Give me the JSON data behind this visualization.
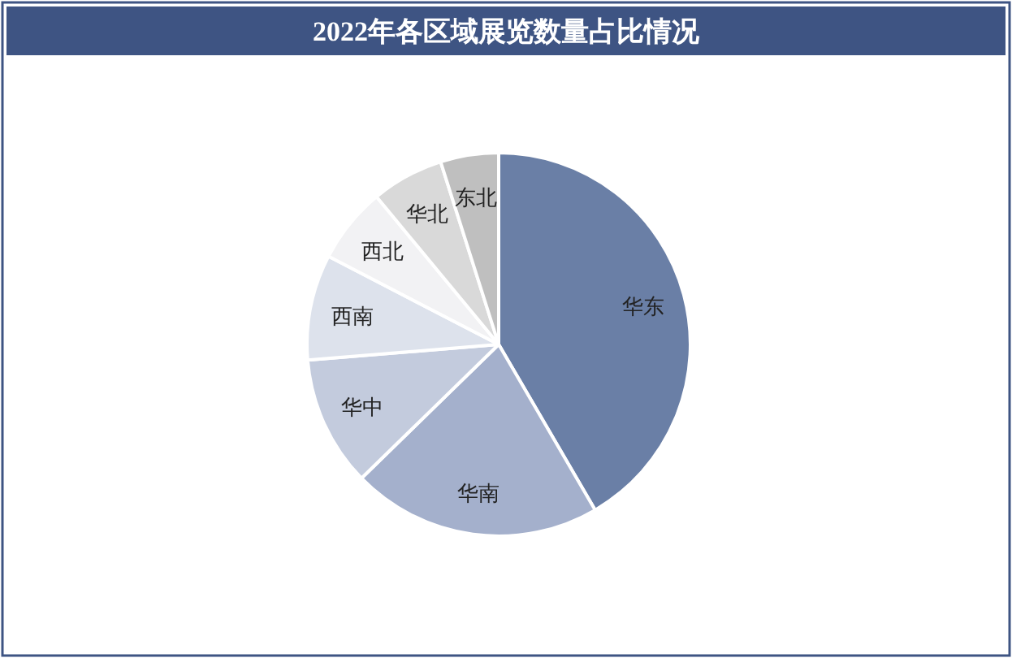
{
  "chart_data": {
    "type": "pie",
    "title": "2022年各区域展览数量占比情况",
    "categories": [
      "华东",
      "华南",
      "华中",
      "西南",
      "西北",
      "华北",
      "东北"
    ],
    "values": [
      41.6,
      21.1,
      11,
      8.9,
      6.4,
      6.1,
      4.9
    ],
    "colors": [
      "#6a7fa6",
      "#a4b0cc",
      "#c3cbdd",
      "#dde2ec",
      "#f2f2f4",
      "#d9d9d9",
      "#bfbfbf"
    ]
  }
}
